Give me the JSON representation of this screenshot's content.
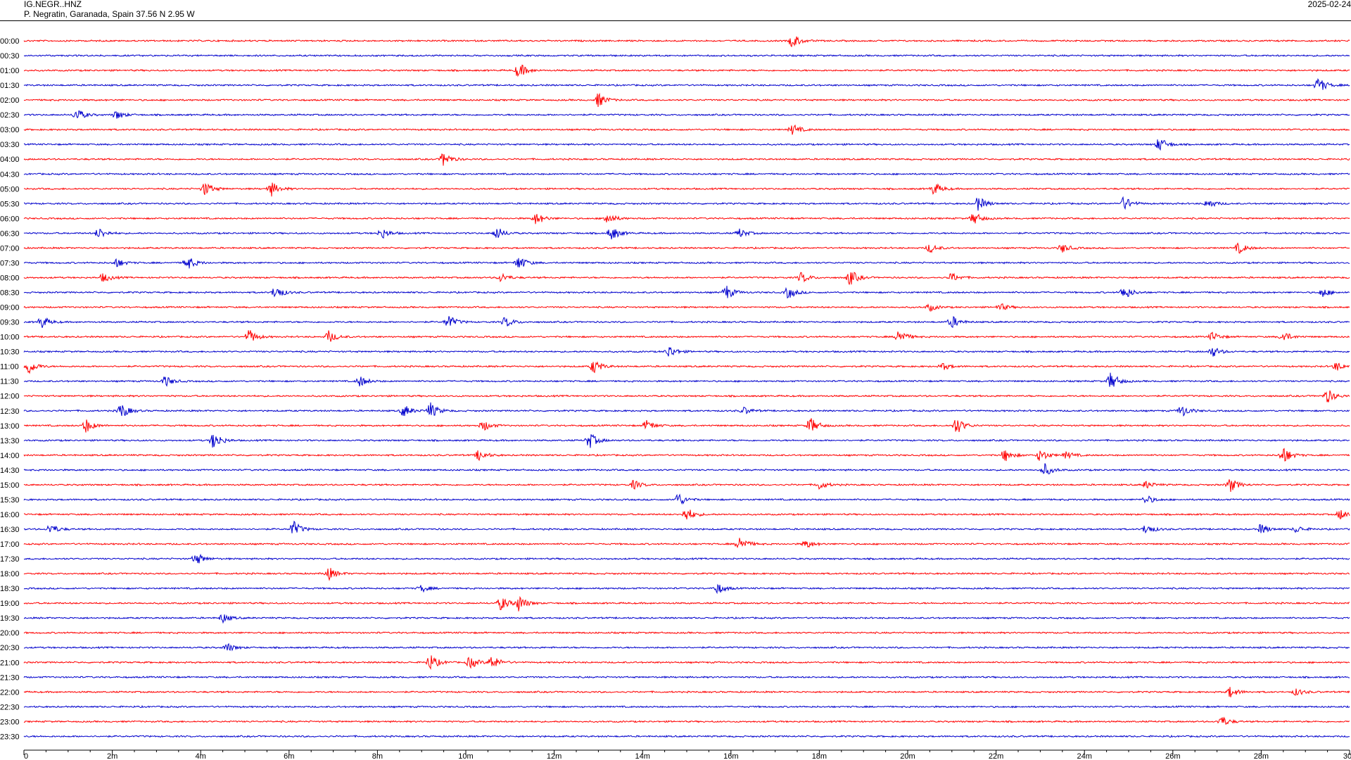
{
  "header": {
    "channel": "IG.NEGR..HNZ",
    "station": "P. Negratin, Garanada, Spain  37.56 N 2.95 W",
    "date": "2025-02-24"
  },
  "colors": {
    "even_rows": "#ff0000",
    "odd_rows": "#0000cc",
    "axis": "#000000"
  },
  "chart_data": {
    "type": "helicorder",
    "row_interval_minutes": 30,
    "rows": [
      "00:00",
      "00:30",
      "01:00",
      "01:30",
      "02:00",
      "02:30",
      "03:00",
      "03:30",
      "04:00",
      "04:30",
      "05:00",
      "05:30",
      "06:00",
      "06:30",
      "07:00",
      "07:30",
      "08:00",
      "08:30",
      "09:00",
      "09:30",
      "10:00",
      "10:30",
      "11:00",
      "11:30",
      "12:00",
      "12:30",
      "13:00",
      "13:30",
      "14:00",
      "14:30",
      "15:00",
      "15:30",
      "16:00",
      "16:30",
      "17:00",
      "17:30",
      "18:00",
      "18:30",
      "19:00",
      "19:30",
      "20:00",
      "20:30",
      "21:00",
      "21:30",
      "22:00",
      "22:30",
      "23:00",
      "23:30"
    ],
    "x_ticks": [
      "0",
      "2m",
      "4m",
      "6m",
      "8m",
      "10m",
      "12m",
      "14m",
      "16m",
      "18m",
      "20m",
      "22m",
      "24m",
      "26m",
      "28m",
      "30"
    ],
    "xlim": [
      0,
      30
    ],
    "events": [
      {
        "row": 0,
        "minute": 17.4,
        "amp": 0.8
      },
      {
        "row": 2,
        "minute": 11.2,
        "amp": 0.9
      },
      {
        "row": 3,
        "minute": 29.3,
        "amp": 0.9
      },
      {
        "row": 4,
        "minute": 13.0,
        "amp": 0.8
      },
      {
        "row": 5,
        "minute": 1.2,
        "amp": 0.7
      },
      {
        "row": 5,
        "minute": 2.1,
        "amp": 0.5
      },
      {
        "row": 6,
        "minute": 17.4,
        "amp": 0.6
      },
      {
        "row": 7,
        "minute": 25.7,
        "amp": 0.8
      },
      {
        "row": 8,
        "minute": 9.5,
        "amp": 0.8
      },
      {
        "row": 10,
        "minute": 4.1,
        "amp": 0.8
      },
      {
        "row": 10,
        "minute": 5.6,
        "amp": 0.8
      },
      {
        "row": 10,
        "minute": 20.6,
        "amp": 0.7
      },
      {
        "row": 11,
        "minute": 21.6,
        "amp": 0.8
      },
      {
        "row": 11,
        "minute": 24.9,
        "amp": 0.8
      },
      {
        "row": 11,
        "minute": 26.8,
        "amp": 0.5
      },
      {
        "row": 12,
        "minute": 11.6,
        "amp": 0.7
      },
      {
        "row": 12,
        "minute": 13.2,
        "amp": 0.7
      },
      {
        "row": 12,
        "minute": 21.5,
        "amp": 0.7
      },
      {
        "row": 13,
        "minute": 1.7,
        "amp": 0.6
      },
      {
        "row": 13,
        "minute": 8.1,
        "amp": 0.6
      },
      {
        "row": 13,
        "minute": 10.7,
        "amp": 0.7
      },
      {
        "row": 13,
        "minute": 13.3,
        "amp": 0.8
      },
      {
        "row": 13,
        "minute": 16.2,
        "amp": 0.5
      },
      {
        "row": 14,
        "minute": 20.5,
        "amp": 0.5
      },
      {
        "row": 14,
        "minute": 23.5,
        "amp": 0.5
      },
      {
        "row": 14,
        "minute": 27.5,
        "amp": 0.6
      },
      {
        "row": 15,
        "minute": 2.1,
        "amp": 0.5
      },
      {
        "row": 15,
        "minute": 3.7,
        "amp": 0.8
      },
      {
        "row": 15,
        "minute": 11.2,
        "amp": 0.8
      },
      {
        "row": 16,
        "minute": 1.8,
        "amp": 0.5
      },
      {
        "row": 16,
        "minute": 10.8,
        "amp": 0.5
      },
      {
        "row": 16,
        "minute": 17.6,
        "amp": 0.6
      },
      {
        "row": 16,
        "minute": 18.7,
        "amp": 0.9
      },
      {
        "row": 16,
        "minute": 21.0,
        "amp": 0.5
      },
      {
        "row": 17,
        "minute": 5.7,
        "amp": 0.8
      },
      {
        "row": 17,
        "minute": 15.9,
        "amp": 0.8
      },
      {
        "row": 17,
        "minute": 17.3,
        "amp": 0.7
      },
      {
        "row": 17,
        "minute": 24.9,
        "amp": 0.8
      },
      {
        "row": 17,
        "minute": 29.4,
        "amp": 0.5
      },
      {
        "row": 18,
        "minute": 20.5,
        "amp": 0.4
      },
      {
        "row": 18,
        "minute": 22.1,
        "amp": 0.4
      },
      {
        "row": 19,
        "minute": 0.4,
        "amp": 0.7
      },
      {
        "row": 19,
        "minute": 9.6,
        "amp": 0.8
      },
      {
        "row": 19,
        "minute": 10.9,
        "amp": 0.6
      },
      {
        "row": 19,
        "minute": 21.0,
        "amp": 0.7
      },
      {
        "row": 20,
        "minute": 5.1,
        "amp": 0.8
      },
      {
        "row": 20,
        "minute": 6.9,
        "amp": 0.7
      },
      {
        "row": 20,
        "minute": 19.8,
        "amp": 0.9
      },
      {
        "row": 20,
        "minute": 26.9,
        "amp": 0.5
      },
      {
        "row": 20,
        "minute": 28.5,
        "amp": 0.6
      },
      {
        "row": 21,
        "minute": 14.6,
        "amp": 0.7
      },
      {
        "row": 21,
        "minute": 26.9,
        "amp": 0.6
      },
      {
        "row": 22,
        "minute": 0.1,
        "amp": 0.9
      },
      {
        "row": 22,
        "minute": 12.9,
        "amp": 0.8
      },
      {
        "row": 22,
        "minute": 20.8,
        "amp": 0.4
      },
      {
        "row": 22,
        "minute": 29.7,
        "amp": 0.5
      },
      {
        "row": 23,
        "minute": 3.2,
        "amp": 0.6
      },
      {
        "row": 23,
        "minute": 7.6,
        "amp": 0.6
      },
      {
        "row": 23,
        "minute": 24.6,
        "amp": 1.0
      },
      {
        "row": 24,
        "minute": 29.5,
        "amp": 0.8
      },
      {
        "row": 25,
        "minute": 2.2,
        "amp": 0.9
      },
      {
        "row": 25,
        "minute": 8.6,
        "amp": 0.7
      },
      {
        "row": 25,
        "minute": 9.2,
        "amp": 0.9
      },
      {
        "row": 25,
        "minute": 16.3,
        "amp": 0.4
      },
      {
        "row": 25,
        "minute": 26.2,
        "amp": 0.7
      },
      {
        "row": 26,
        "minute": 1.4,
        "amp": 0.8
      },
      {
        "row": 26,
        "minute": 10.4,
        "amp": 0.6
      },
      {
        "row": 26,
        "minute": 14.1,
        "amp": 0.6
      },
      {
        "row": 26,
        "minute": 17.8,
        "amp": 0.9
      },
      {
        "row": 26,
        "minute": 21.1,
        "amp": 1.0
      },
      {
        "row": 27,
        "minute": 4.3,
        "amp": 1.0
      },
      {
        "row": 27,
        "minute": 12.8,
        "amp": 0.9
      },
      {
        "row": 28,
        "minute": 10.3,
        "amp": 0.6
      },
      {
        "row": 28,
        "minute": 22.2,
        "amp": 0.7
      },
      {
        "row": 28,
        "minute": 23.0,
        "amp": 0.7
      },
      {
        "row": 28,
        "minute": 23.6,
        "amp": 0.4
      },
      {
        "row": 28,
        "minute": 28.5,
        "amp": 1.0
      },
      {
        "row": 29,
        "minute": 23.1,
        "amp": 0.7
      },
      {
        "row": 30,
        "minute": 13.8,
        "amp": 0.5
      },
      {
        "row": 30,
        "minute": 18.0,
        "amp": 0.5
      },
      {
        "row": 30,
        "minute": 25.4,
        "amp": 0.4
      },
      {
        "row": 30,
        "minute": 27.3,
        "amp": 0.8
      },
      {
        "row": 31,
        "minute": 14.8,
        "amp": 0.8
      },
      {
        "row": 31,
        "minute": 25.4,
        "amp": 0.5
      },
      {
        "row": 32,
        "minute": 15.0,
        "amp": 0.8
      },
      {
        "row": 32,
        "minute": 29.8,
        "amp": 0.6
      },
      {
        "row": 33,
        "minute": 0.6,
        "amp": 0.6
      },
      {
        "row": 33,
        "minute": 6.1,
        "amp": 0.9
      },
      {
        "row": 33,
        "minute": 25.4,
        "amp": 0.6
      },
      {
        "row": 33,
        "minute": 28.0,
        "amp": 0.6
      },
      {
        "row": 33,
        "minute": 28.8,
        "amp": 0.4
      },
      {
        "row": 34,
        "minute": 16.2,
        "amp": 0.9
      },
      {
        "row": 34,
        "minute": 17.7,
        "amp": 0.5
      },
      {
        "row": 35,
        "minute": 3.9,
        "amp": 0.7
      },
      {
        "row": 36,
        "minute": 6.9,
        "amp": 0.7
      },
      {
        "row": 37,
        "minute": 9.0,
        "amp": 0.4
      },
      {
        "row": 37,
        "minute": 15.7,
        "amp": 0.6
      },
      {
        "row": 38,
        "minute": 10.8,
        "amp": 0.8
      },
      {
        "row": 38,
        "minute": 11.2,
        "amp": 0.9
      },
      {
        "row": 39,
        "minute": 4.5,
        "amp": 0.5
      },
      {
        "row": 41,
        "minute": 4.6,
        "amp": 0.5
      },
      {
        "row": 42,
        "minute": 9.2,
        "amp": 0.9
      },
      {
        "row": 42,
        "minute": 10.1,
        "amp": 0.7
      },
      {
        "row": 42,
        "minute": 10.6,
        "amp": 0.8
      },
      {
        "row": 44,
        "minute": 27.3,
        "amp": 0.6
      },
      {
        "row": 44,
        "minute": 28.8,
        "amp": 0.4
      },
      {
        "row": 46,
        "minute": 27.1,
        "amp": 0.6
      }
    ]
  }
}
